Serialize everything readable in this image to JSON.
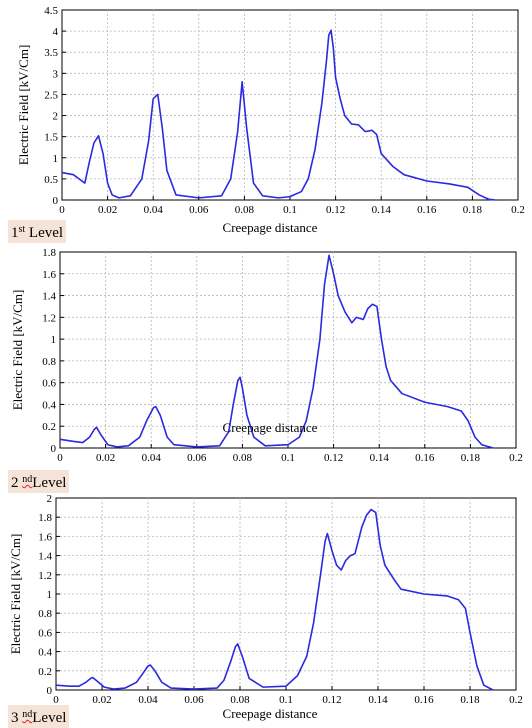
{
  "chart_data": [
    {
      "type": "line",
      "ylabel": "Electric Field [kV/Cm]",
      "xlabel": "Creepage distance",
      "xlim": [
        0,
        0.2
      ],
      "ylim": [
        0,
        4.5
      ],
      "xticks": [
        "0",
        "0.02",
        "0.04",
        "0.06",
        "0.08",
        "0.1",
        "0.12",
        "0.14",
        "0.16",
        "0.18",
        "0.2"
      ],
      "yticks": [
        "0",
        "0.5",
        "1",
        "1.5",
        "2",
        "2.5",
        "3",
        "3.5",
        "4",
        "4.5"
      ],
      "grid": true,
      "series_color": "#2a2ae0",
      "caption": {
        "num": "1",
        "sup": "st",
        "word": "Level"
      },
      "series": [
        {
          "x": [
            0,
            0.005,
            0.01,
            0.012,
            0.014,
            0.016,
            0.018,
            0.02,
            0.022,
            0.025,
            0.03,
            0.035,
            0.038,
            0.04,
            0.042,
            0.044,
            0.046,
            0.05,
            0.06,
            0.07,
            0.074,
            0.077,
            0.079,
            0.081,
            0.084,
            0.088,
            0.095,
            0.1,
            0.105,
            0.108,
            0.111,
            0.114,
            0.116,
            0.117,
            0.118,
            0.119,
            0.12,
            0.122,
            0.124,
            0.127,
            0.13,
            0.133,
            0.136,
            0.138,
            0.14,
            0.145,
            0.15,
            0.16,
            0.17,
            0.178,
            0.183,
            0.187,
            0.19
          ],
          "y": [
            0.65,
            0.6,
            0.4,
            0.9,
            1.35,
            1.52,
            1.1,
            0.4,
            0.12,
            0.05,
            0.1,
            0.5,
            1.4,
            2.4,
            2.5,
            1.7,
            0.7,
            0.12,
            0.05,
            0.1,
            0.5,
            1.6,
            2.8,
            1.7,
            0.4,
            0.1,
            0.05,
            0.08,
            0.2,
            0.5,
            1.2,
            2.3,
            3.3,
            3.9,
            4.02,
            3.6,
            2.9,
            2.4,
            2.0,
            1.8,
            1.78,
            1.62,
            1.65,
            1.55,
            1.1,
            0.8,
            0.6,
            0.45,
            0.38,
            0.3,
            0.12,
            0.02,
            0.0
          ]
        }
      ]
    },
    {
      "type": "line",
      "ylabel": "Electric Field [kV/Cm]",
      "xlabel": "Creepage distance",
      "xlim": [
        0,
        0.2
      ],
      "ylim": [
        0,
        1.8
      ],
      "xticks": [
        "0",
        "0.02",
        "0.04",
        "0.06",
        "0.08",
        "0.1",
        "0.12",
        "0.14",
        "0.16",
        "0.18",
        "0.2"
      ],
      "yticks": [
        "0",
        "0.2",
        "0.4",
        "0.6",
        "0.8",
        "1",
        "1.2",
        "1.4",
        "1.6",
        "1.8"
      ],
      "grid": true,
      "series_color": "#2a2ae0",
      "caption": {
        "num": "2",
        "sup": "nd",
        "word": "Level"
      },
      "series": [
        {
          "x": [
            0,
            0.006,
            0.01,
            0.013,
            0.015,
            0.016,
            0.018,
            0.021,
            0.025,
            0.03,
            0.035,
            0.038,
            0.041,
            0.042,
            0.044,
            0.047,
            0.05,
            0.06,
            0.07,
            0.074,
            0.076,
            0.078,
            0.079,
            0.08,
            0.082,
            0.085,
            0.09,
            0.1,
            0.105,
            0.108,
            0.111,
            0.114,
            0.116,
            0.118,
            0.12,
            0.122,
            0.125,
            0.128,
            0.13,
            0.133,
            0.135,
            0.137,
            0.139,
            0.141,
            0.143,
            0.145,
            0.15,
            0.16,
            0.17,
            0.176,
            0.179,
            0.182,
            0.185,
            0.19
          ],
          "y": [
            0.08,
            0.06,
            0.05,
            0.1,
            0.17,
            0.19,
            0.12,
            0.03,
            0.01,
            0.02,
            0.1,
            0.25,
            0.37,
            0.38,
            0.3,
            0.1,
            0.03,
            0.01,
            0.02,
            0.15,
            0.4,
            0.62,
            0.65,
            0.55,
            0.3,
            0.1,
            0.02,
            0.03,
            0.1,
            0.25,
            0.55,
            1.0,
            1.5,
            1.77,
            1.6,
            1.4,
            1.25,
            1.15,
            1.2,
            1.18,
            1.28,
            1.32,
            1.3,
            1.0,
            0.75,
            0.62,
            0.5,
            0.42,
            0.38,
            0.34,
            0.25,
            0.1,
            0.03,
            0.0
          ]
        }
      ]
    },
    {
      "type": "line",
      "ylabel": "Electric Field [kV/Cm]",
      "xlabel": "Creepage distance",
      "xlim": [
        0,
        0.2
      ],
      "ylim": [
        0,
        2
      ],
      "xticks": [
        "0",
        "0.02",
        "0.04",
        "0.06",
        "0.08",
        "0.1",
        "0.12",
        "0.14",
        "0.16",
        "0.18",
        "0.2"
      ],
      "yticks": [
        "0",
        "0.2",
        "0.4",
        "0.6",
        "0.8",
        "1",
        "1.2",
        "1.4",
        "1.6",
        "1.8",
        "2"
      ],
      "grid": true,
      "series_color": "#2a2ae0",
      "caption": {
        "num": "3",
        "sup": "nd",
        "word": "Level"
      },
      "series": [
        {
          "x": [
            0,
            0.006,
            0.01,
            0.013,
            0.015,
            0.016,
            0.018,
            0.021,
            0.025,
            0.03,
            0.035,
            0.038,
            0.04,
            0.041,
            0.043,
            0.046,
            0.05,
            0.06,
            0.07,
            0.073,
            0.076,
            0.078,
            0.079,
            0.081,
            0.084,
            0.09,
            0.1,
            0.105,
            0.109,
            0.112,
            0.115,
            0.117,
            0.118,
            0.12,
            0.122,
            0.124,
            0.126,
            0.128,
            0.13,
            0.133,
            0.135,
            0.137,
            0.139,
            0.141,
            0.143,
            0.147,
            0.15,
            0.16,
            0.17,
            0.175,
            0.178,
            0.18,
            0.183,
            0.186,
            0.19
          ],
          "y": [
            0.05,
            0.04,
            0.04,
            0.08,
            0.12,
            0.13,
            0.09,
            0.03,
            0.01,
            0.02,
            0.08,
            0.18,
            0.25,
            0.26,
            0.2,
            0.08,
            0.02,
            0.01,
            0.02,
            0.1,
            0.3,
            0.45,
            0.48,
            0.35,
            0.12,
            0.03,
            0.04,
            0.15,
            0.35,
            0.7,
            1.2,
            1.55,
            1.63,
            1.45,
            1.3,
            1.25,
            1.35,
            1.4,
            1.42,
            1.7,
            1.82,
            1.88,
            1.85,
            1.5,
            1.3,
            1.15,
            1.05,
            1.0,
            0.98,
            0.94,
            0.85,
            0.6,
            0.25,
            0.05,
            0.0
          ]
        }
      ]
    }
  ]
}
